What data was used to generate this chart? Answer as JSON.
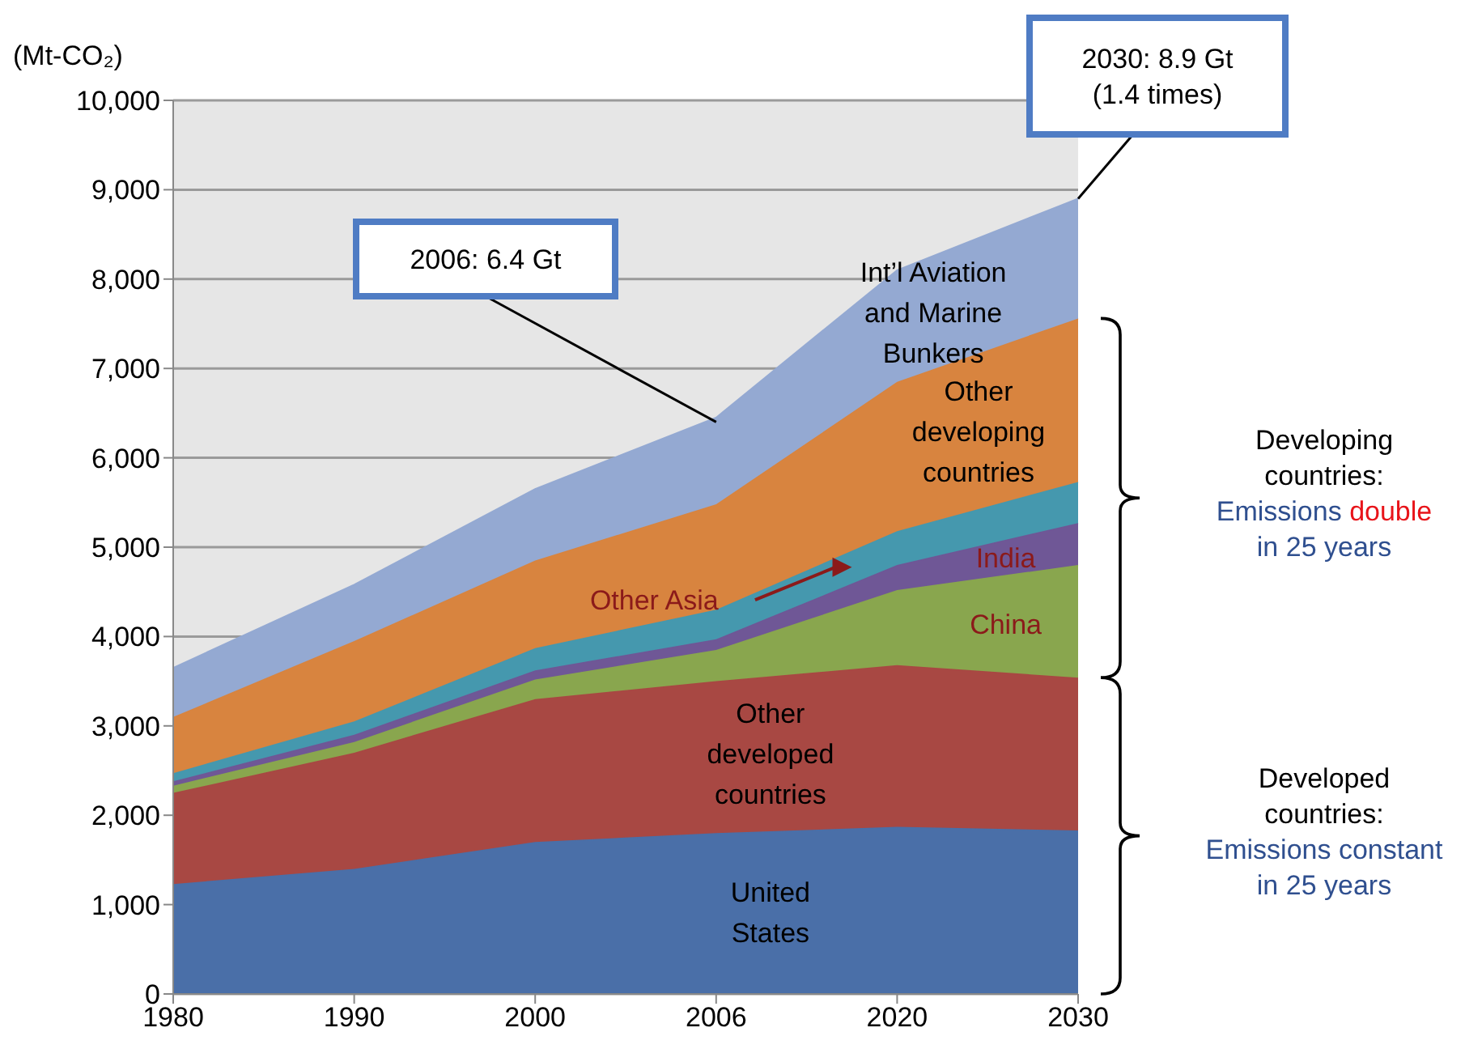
{
  "chart_data": {
    "type": "area",
    "stacked": true,
    "ylabel": "(Mt-CO₂)",
    "categories": [
      "1980",
      "1990",
      "2000",
      "2006",
      "2020",
      "2030"
    ],
    "series": [
      {
        "name": "United States",
        "color": "#4a6fa8",
        "values": [
          1230,
          1400,
          1700,
          1800,
          1870,
          1830
        ]
      },
      {
        "name": "Other developed countries",
        "color": "#a84843",
        "values": [
          1020,
          1300,
          1600,
          1700,
          1810,
          1710
        ]
      },
      {
        "name": "China",
        "color": "#89a64e",
        "values": [
          80,
          120,
          220,
          350,
          840,
          1260
        ]
      },
      {
        "name": "India",
        "color": "#6f5796",
        "values": [
          50,
          80,
          100,
          120,
          280,
          470
        ]
      },
      {
        "name": "Other Asia",
        "color": "#4598ae",
        "values": [
          90,
          150,
          250,
          330,
          380,
          460
        ]
      },
      {
        "name": "Other developing countries",
        "color": "#d8843f",
        "values": [
          630,
          900,
          980,
          1180,
          1670,
          1830
        ]
      },
      {
        "name": "Int’l Aviation and Marine Bunkers",
        "color": "#94a9d2",
        "values": [
          550,
          630,
          800,
          970,
          1250,
          1340
        ]
      }
    ],
    "ylim": [
      0,
      10000
    ],
    "yticks": [
      {
        "value": 0,
        "label": "0"
      },
      {
        "value": 1000,
        "label": "1,000"
      },
      {
        "value": 2000,
        "label": "2,000"
      },
      {
        "value": 3000,
        "label": "3,000"
      },
      {
        "value": 4000,
        "label": "4,000"
      },
      {
        "value": 5000,
        "label": "5,000"
      },
      {
        "value": 6000,
        "label": "6,000"
      },
      {
        "value": 7000,
        "label": "7,000"
      },
      {
        "value": 8000,
        "label": "8,000"
      },
      {
        "value": 9000,
        "label": "9,000"
      },
      {
        "value": 10000,
        "label": "10,000"
      }
    ],
    "grid": "y",
    "legend": false,
    "annotations": [
      {
        "text": "2006: 6.4 Gt",
        "x": "2006",
        "y": 6400
      },
      {
        "text": "2030: 8.9 Gt (1.4 times)",
        "x": "2030",
        "y": 8900
      },
      "Developing countries: Emissions double in 25 years",
      "Developed countries: Emissions constant in 25 years"
    ]
  }
}
